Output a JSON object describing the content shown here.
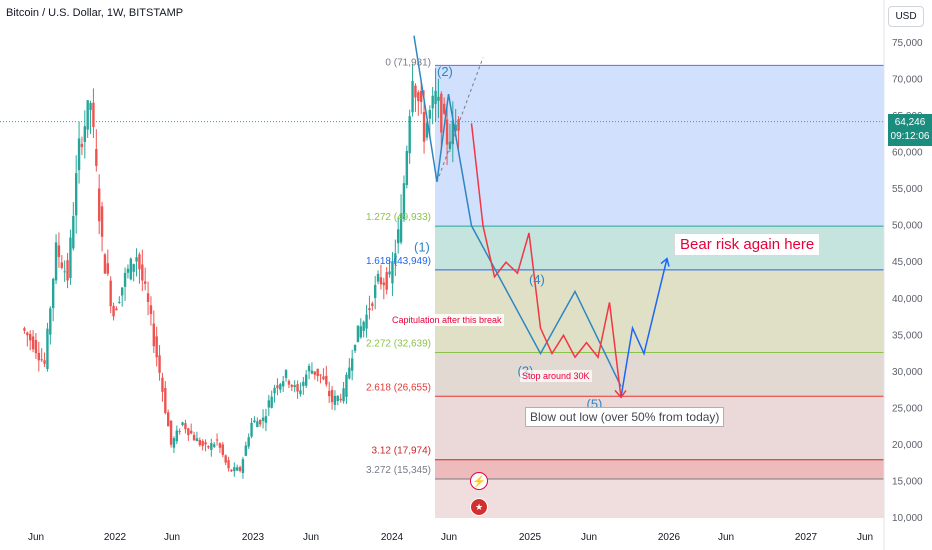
{
  "header": {
    "title": "Bitcoin / U.S. Dollar, 1W, BITSTAMP",
    "currency_button": "USD"
  },
  "price_tag": {
    "price": "64,246",
    "countdown": "09:12:06"
  },
  "colors": {
    "up": "#26a69a",
    "down": "#ef5350",
    "bear_text": "#e8003a",
    "wave_blue": "#2e86c1",
    "projection_red": "#f23645",
    "projection_blue": "#1e66f5"
  },
  "annotations": {
    "bear_risk": "Bear risk again here",
    "blow_out": "Blow out low (over 50% from today)",
    "capitulation": "Capitulation after this break",
    "stop": "Stop around 30K"
  },
  "icons": [
    "flash-icon",
    "us-flag-icon"
  ],
  "chart_data": {
    "type": "candlestick",
    "title": "Bitcoin / U.S. Dollar, 1W, BITSTAMP",
    "y_axis": {
      "ticks": [
        "75,000",
        "70,000",
        "65,000",
        "60,000",
        "55,000",
        "50,000",
        "45,000",
        "40,000",
        "35,000",
        "30,000",
        "25,000",
        "20,000",
        "15,000",
        "10,000"
      ],
      "range": [
        10000,
        76000
      ]
    },
    "x_axis": {
      "ticks": [
        "Jun",
        "2022",
        "Jun",
        "2023",
        "Jun",
        "2024",
        "Jun",
        "2025",
        "Jun",
        "2026",
        "Jun",
        "2027",
        "Jun"
      ]
    },
    "last_price": 64246,
    "price_path": [
      [
        "2021-05",
        36000
      ],
      [
        "2021-06",
        34000
      ],
      [
        "2021-07",
        31000
      ],
      [
        "2021-08",
        47000
      ],
      [
        "2021-09",
        43000
      ],
      [
        "2021-10",
        61000
      ],
      [
        "2021-11",
        67000
      ],
      [
        "2021-12",
        47000
      ],
      [
        "2022-01",
        38000
      ],
      [
        "2022-02",
        43000
      ],
      [
        "2022-03",
        46000
      ],
      [
        "2022-04",
        39000
      ],
      [
        "2022-05",
        30000
      ],
      [
        "2022-06",
        20000
      ],
      [
        "2022-07",
        23000
      ],
      [
        "2022-08",
        21000
      ],
      [
        "2022-09",
        19500
      ],
      [
        "2022-10",
        20500
      ],
      [
        "2022-11",
        16500
      ],
      [
        "2022-12",
        16600
      ],
      [
        "2023-01",
        23000
      ],
      [
        "2023-02",
        23500
      ],
      [
        "2023-03",
        28000
      ],
      [
        "2023-04",
        29500
      ],
      [
        "2023-05",
        27000
      ],
      [
        "2023-06",
        30500
      ],
      [
        "2023-07",
        29500
      ],
      [
        "2023-08",
        26000
      ],
      [
        "2023-09",
        27000
      ],
      [
        "2023-10",
        34500
      ],
      [
        "2023-11",
        37700
      ],
      [
        "2023-12",
        42500
      ],
      [
        "2024-01",
        42500
      ],
      [
        "2024-02",
        51000
      ],
      [
        "2024-03",
        71000
      ],
      [
        "2024-04",
        63000
      ],
      [
        "2024-05",
        67500
      ],
      [
        "2024-06",
        62000
      ],
      [
        "2024-07",
        64246
      ]
    ],
    "fibonacci_levels": [
      {
        "label": "0 (71,931)",
        "value": 71931
      },
      {
        "label": "1.272 (49,933)",
        "value": 49933
      },
      {
        "label": "1.618 (43,949)",
        "value": 43949
      },
      {
        "label": "2.272 (32,639)",
        "value": 32639
      },
      {
        "label": "2.618 (26,655)",
        "value": 26655
      },
      {
        "label": "3.12 (17,974)",
        "value": 17974
      },
      {
        "label": "3.272 (15,345)",
        "value": 15345
      }
    ],
    "wave_labels": [
      "(1)",
      "(2)",
      "(3)",
      "(4)",
      "(5)"
    ],
    "projection_red": [
      [
        "2024-08",
        64000
      ],
      [
        "2024-09",
        50000
      ],
      [
        "2024-10",
        43000
      ],
      [
        "2024-11",
        45000
      ],
      [
        "2024-12",
        43500
      ],
      [
        "2025-01",
        49000
      ],
      [
        "2025-02",
        36000
      ],
      [
        "2025-03",
        32500
      ],
      [
        "2025-04",
        35000
      ],
      [
        "2025-05",
        32000
      ],
      [
        "2025-06",
        34000
      ],
      [
        "2025-07",
        32000
      ],
      [
        "2025-08",
        39500
      ],
      [
        "2025-09",
        26500
      ]
    ],
    "projection_blue": [
      [
        "2025-09",
        26500
      ],
      [
        "2025-10",
        36000
      ],
      [
        "2025-11",
        32500
      ],
      [
        "2026-01",
        45500
      ]
    ],
    "wave_path_blue": [
      [
        "2024-03",
        76000
      ],
      [
        "2024-05",
        56000
      ],
      [
        "2024-06",
        68000
      ],
      [
        "2024-08",
        50000
      ],
      [
        "2025-02",
        32500
      ],
      [
        "2025-05",
        41000
      ],
      [
        "2025-09",
        28000
      ]
    ],
    "grid": false
  }
}
